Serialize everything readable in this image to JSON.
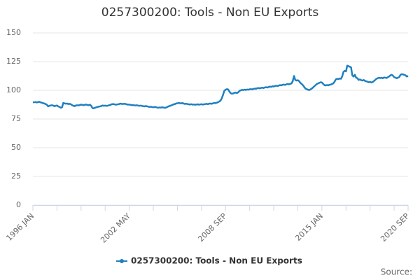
{
  "chart_data": {
    "type": "line",
    "title": "0257300200: Tools - Non EU Exports",
    "source": "Source:",
    "categories": [
      "1996 JAN",
      null,
      null,
      null,
      null,
      null,
      null,
      null,
      null,
      null,
      null,
      null,
      null,
      null,
      null,
      null,
      null,
      null,
      null,
      null,
      null,
      null,
      null,
      null,
      null,
      null,
      null,
      null,
      null,
      null,
      null,
      null,
      null,
      null,
      null,
      null,
      null,
      null,
      null,
      null,
      null,
      null,
      null,
      null,
      null,
      null,
      null,
      null,
      null,
      null,
      null,
      null,
      null,
      null,
      null,
      null,
      null,
      null,
      null,
      null,
      null,
      null,
      null,
      null,
      null,
      null,
      null,
      null,
      null,
      null,
      null,
      null,
      null,
      null,
      null,
      null,
      "2002 MAY",
      null,
      null,
      null,
      null,
      null,
      null,
      null,
      null,
      null,
      null,
      null,
      null,
      null,
      null,
      null,
      null,
      null,
      null,
      null,
      null,
      null,
      null,
      null,
      null,
      null,
      null,
      null,
      null,
      null,
      null,
      null,
      null,
      null,
      null,
      null,
      null,
      null,
      null,
      null,
      null,
      null,
      null,
      null,
      null,
      null,
      null,
      null,
      null,
      null,
      null,
      null,
      null,
      null,
      null,
      null,
      null,
      null,
      null,
      null,
      null,
      null,
      null,
      null,
      null,
      null,
      null,
      null,
      null,
      null,
      null,
      null,
      null,
      null,
      null,
      null,
      "2008 SEP",
      null,
      null,
      null,
      null,
      null,
      null,
      null,
      null,
      null,
      null,
      null,
      null,
      null,
      null,
      null,
      null,
      null,
      null,
      null,
      null,
      null,
      null,
      null,
      null,
      null,
      null,
      null,
      null,
      null,
      null,
      null,
      null,
      null,
      null,
      null,
      null,
      null,
      null,
      null,
      null,
      null,
      null,
      null,
      null,
      null,
      null,
      null,
      null,
      null,
      null,
      null,
      null,
      null,
      null,
      null,
      null,
      null,
      null,
      null,
      null,
      null,
      null,
      null,
      null,
      null,
      null,
      null,
      null,
      null,
      null,
      null,
      null,
      null,
      null,
      null,
      "2015 JAN",
      null,
      null,
      null,
      null,
      null,
      null,
      null,
      null,
      null,
      null,
      null,
      null,
      null,
      null,
      null,
      null,
      null,
      null,
      null,
      null,
      null,
      null,
      null,
      null,
      null,
      null,
      null,
      null,
      null,
      null,
      null,
      null,
      null,
      null,
      null,
      null,
      null,
      null,
      null,
      null,
      null,
      null,
      null,
      null,
      null,
      null,
      null,
      null,
      null,
      null,
      null,
      null,
      null,
      null,
      null,
      null,
      null,
      null,
      null,
      null,
      null,
      null,
      null,
      null,
      null,
      null,
      null,
      "2020 SEP"
    ],
    "series": [
      {
        "name": "0257300200: Tools - Non EU Exports",
        "color": "#1f80c0",
        "values": [
          89.5,
          89.6,
          89.8,
          89.4,
          89.7,
          90,
          89.5,
          89.2,
          88.8,
          88.5,
          88,
          87.5,
          86,
          86.5,
          86.8,
          87,
          86.7,
          86.2,
          86.5,
          86.8,
          86,
          85.5,
          84.8,
          85.2,
          89,
          88.6,
          88.3,
          88.5,
          88,
          88.2,
          87.8,
          87,
          86.5,
          86.2,
          86.8,
          87,
          86.8,
          87.2,
          87.5,
          87.3,
          87,
          87.4,
          87.6,
          87.2,
          87,
          87.5,
          86.5,
          84.5,
          84.3,
          84.8,
          85.2,
          85.5,
          85.8,
          86,
          86.3,
          86.8,
          86.5,
          86.7,
          86.4,
          86.6,
          86.9,
          87.2,
          87.8,
          88,
          87.9,
          87.5,
          87.6,
          87.8,
          88,
          88.4,
          88.2,
          88,
          88.3,
          88.1,
          87.8,
          87.5,
          87.6,
          87.3,
          87,
          87.2,
          86.9,
          86.8,
          87,
          86.7,
          86.5,
          86.7,
          86.4,
          86.2,
          86,
          86.3,
          86.1,
          85.8,
          85.5,
          85.7,
          85.4,
          85.2,
          85.5,
          85.3,
          85,
          84.8,
          85.1,
          84.9,
          85.2,
          85,
          84.7,
          84.9,
          85.5,
          86,
          86.4,
          86.8,
          87.2,
          87.8,
          88,
          88.5,
          88.7,
          89,
          88.8,
          88.6,
          88.9,
          88.4,
          88.1,
          88.3,
          88,
          87.8,
          87.6,
          87.9,
          87.5,
          87.7,
          87.4,
          87.6,
          87.8,
          87.5,
          87.7,
          87.9,
          87.6,
          87.8,
          88,
          88.2,
          87.9,
          88.3,
          88.5,
          88.2,
          88.6,
          89,
          88.8,
          89.2,
          89.6,
          90.2,
          91,
          93,
          96,
          99.5,
          100.5,
          101,
          100.8,
          99,
          97.5,
          97,
          97.3,
          97.8,
          98,
          97.6,
          98.3,
          99.5,
          100,
          100.4,
          100.2,
          100.6,
          100.3,
          100.7,
          100.5,
          100.9,
          101,
          100.8,
          101.2,
          101.5,
          101.3,
          101.8,
          102,
          101.7,
          102.1,
          102.3,
          102,
          102.5,
          102.7,
          102.4,
          102.9,
          103.2,
          103,
          103.5,
          103.3,
          103.8,
          104,
          103.7,
          104.2,
          104.5,
          104.3,
          104.8,
          105,
          104.7,
          105.2,
          105.5,
          105.2,
          105.6,
          106,
          108,
          112.5,
          109,
          108.5,
          108.8,
          108,
          106.5,
          105.5,
          104.5,
          103,
          101.5,
          101,
          100.5,
          100.2,
          100.8,
          101.5,
          102.5,
          103.5,
          104.5,
          105.5,
          106,
          106.5,
          107,
          106.8,
          105.5,
          104.5,
          104.2,
          104.6,
          104.3,
          104.8,
          105,
          105.5,
          106,
          107.5,
          109.5,
          110,
          109.8,
          110.3,
          110,
          112,
          116,
          117,
          116.5,
          121.5,
          121,
          120.5,
          120,
          113,
          112,
          113.5,
          111,
          110.5,
          109,
          109.5,
          108.8,
          108.5,
          109,
          108.2,
          107.8,
          107.5,
          107,
          107.3,
          106.8,
          107.2,
          108,
          109,
          110,
          110.5,
          111,
          110.6,
          111,
          110.5,
          111.2,
          111,
          110.7,
          111.4,
          112,
          113,
          113.5,
          112.8,
          111.5,
          111,
          110.5,
          111,
          111.5,
          113.5,
          114,
          113.8,
          113.5,
          113,
          112,
          112.5
        ]
      }
    ],
    "ylim": [
      0,
      150
    ],
    "yticks": [
      0,
      25,
      50,
      75,
      100,
      125,
      150
    ],
    "grid": true
  }
}
